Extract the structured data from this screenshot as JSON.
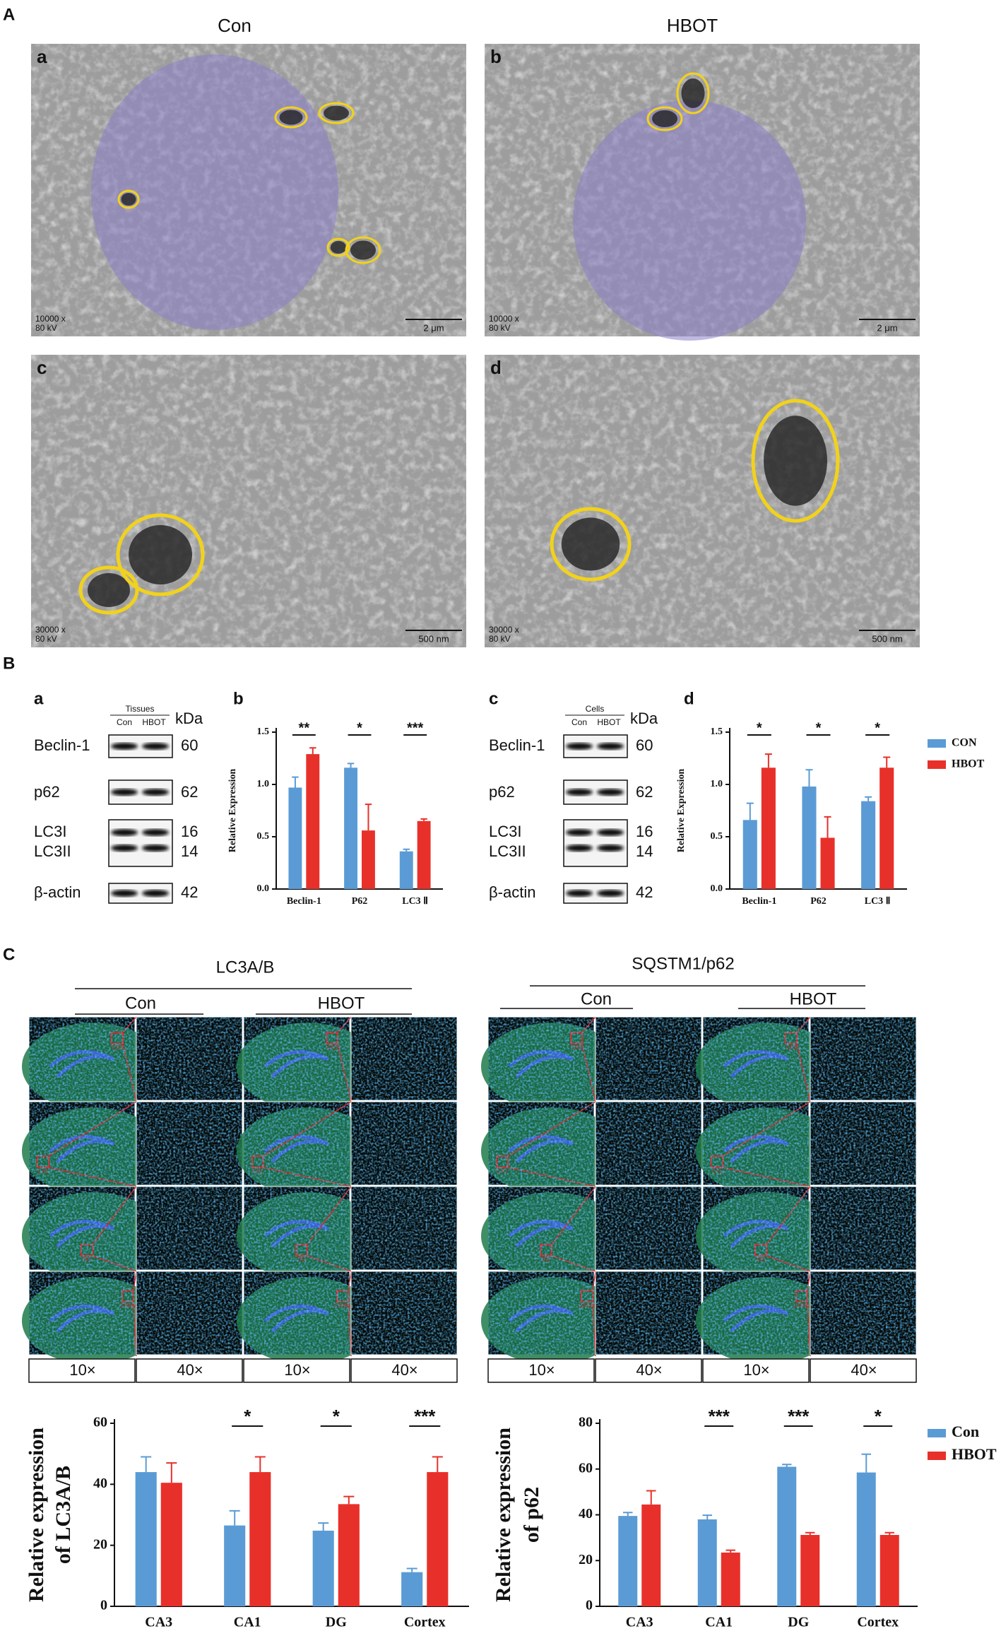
{
  "panel_A": {
    "label": "A",
    "columns": [
      "Con",
      "HBOT"
    ],
    "images": [
      {
        "letter": "a",
        "magnification": "10000 x",
        "voltage": "80 kV",
        "scale": "2 μm"
      },
      {
        "letter": "b",
        "magnification": "10000 x",
        "voltage": "80 kV",
        "scale": "2 μm"
      },
      {
        "letter": "c",
        "magnification": "30000 x",
        "voltage": "80 kV",
        "scale": "500 nm"
      },
      {
        "letter": "d",
        "magnification": "30000 x",
        "voltage": "80 kV",
        "scale": "500 nm"
      }
    ]
  },
  "panel_B": {
    "label": "B",
    "blots": [
      {
        "letter": "a",
        "group": "Tissues",
        "lanes": [
          "Con",
          "HBOT"
        ],
        "unit": "kDa",
        "bands": [
          {
            "name": "Beclin-1",
            "kda": 60
          },
          {
            "name": "p62",
            "kda": 62
          },
          {
            "name": "LC3I",
            "kda": 16
          },
          {
            "name": "LC3II",
            "kda": 14
          },
          {
            "name": "β-actin",
            "kda": 42
          }
        ]
      },
      {
        "letter": "c",
        "group": "Cells",
        "lanes": [
          "Con",
          "HBOT"
        ],
        "unit": "kDa",
        "bands": [
          {
            "name": "Beclin-1",
            "kda": 60
          },
          {
            "name": "p62",
            "kda": 62
          },
          {
            "name": "LC3I",
            "kda": 16
          },
          {
            "name": "LC3II",
            "kda": 14
          },
          {
            "name": "β-actin",
            "kda": 42
          }
        ]
      }
    ]
  },
  "panel_C": {
    "label": "C",
    "stains": [
      {
        "title": "LC3A/B",
        "groups": [
          "Con",
          "HBOT"
        ]
      },
      {
        "title": "SQSTM1/p62",
        "groups": [
          "Con",
          "HBOT"
        ]
      }
    ],
    "magnifications": [
      "10×",
      "40×"
    ],
    "regions": [
      "CA3",
      "CA1",
      "DG",
      "Cortex"
    ]
  },
  "chart_data": [
    {
      "type": "bar",
      "panel_label": "b",
      "y_label": [
        "Relative Expression"
      ],
      "categories": [
        "Beclin-1",
        "P62",
        "LC3 Ⅱ"
      ],
      "series": [
        {
          "name": "CON",
          "color": "#5b9bd5",
          "values": [
            0.97,
            1.16,
            0.36
          ],
          "errors": [
            0.1,
            0.04,
            0.02
          ]
        },
        {
          "name": "HBOT",
          "color": "#e8302a",
          "values": [
            1.29,
            0.56,
            0.65
          ],
          "errors": [
            0.06,
            0.25,
            0.02
          ]
        }
      ],
      "significance": [
        "**",
        "*",
        "***"
      ],
      "ylim": [
        0,
        1.5
      ],
      "yticks": [
        {
          "value": 0,
          "label": "0.0"
        },
        0.5,
        {
          "value": 1,
          "label": "1.0"
        },
        1.5
      ],
      "legend": false
    },
    {
      "type": "bar",
      "panel_label": "d",
      "y_label": [
        "Relative Expression"
      ],
      "categories": [
        "Beclin-1",
        "P62",
        "LC3 Ⅱ"
      ],
      "series": [
        {
          "name": "CON",
          "color": "#5b9bd5",
          "values": [
            0.66,
            0.98,
            0.84
          ],
          "errors": [
            0.16,
            0.16,
            0.04
          ]
        },
        {
          "name": "HBOT",
          "color": "#e8302a",
          "values": [
            1.16,
            0.49,
            1.16
          ],
          "errors": [
            0.13,
            0.2,
            0.1
          ]
        }
      ],
      "significance": [
        "*",
        "*",
        "*"
      ],
      "ylim": [
        0,
        1.5
      ],
      "yticks": [
        {
          "value": 0,
          "label": "0.0"
        },
        0.5,
        {
          "value": 1,
          "label": "1.0"
        },
        1.5
      ],
      "legend": true
    },
    {
      "type": "bar",
      "y_label": [
        "Relative expression",
        "of LC3A/B"
      ],
      "categories": [
        "CA3",
        "CA1",
        "DG",
        "Cortex"
      ],
      "series": [
        {
          "name": "Con",
          "color": "#5b9bd5",
          "values": [
            44,
            26.5,
            24.8,
            11.2
          ],
          "errors": [
            5,
            4.8,
            2.5,
            1.2
          ]
        },
        {
          "name": "HBOT",
          "color": "#e8302a",
          "values": [
            40.5,
            44,
            33.5,
            44
          ],
          "errors": [
            6.5,
            5,
            2.5,
            5
          ]
        }
      ],
      "significance": [
        null,
        "*",
        "*",
        "***"
      ],
      "ylim": [
        0,
        60
      ],
      "yticks": [
        0,
        20,
        40,
        60
      ],
      "legend": false
    },
    {
      "type": "bar",
      "y_label": [
        "Relative expression",
        "of p62"
      ],
      "categories": [
        "CA3",
        "CA1",
        "DG",
        "Cortex"
      ],
      "series": [
        {
          "name": "Con",
          "color": "#5b9bd5",
          "values": [
            39.5,
            38,
            61,
            58.5
          ],
          "errors": [
            1.5,
            1.8,
            1,
            8
          ]
        },
        {
          "name": "HBOT",
          "color": "#e8302a",
          "values": [
            44.5,
            23.5,
            31.2,
            31.2
          ],
          "errors": [
            6,
            1,
            1,
            1
          ]
        }
      ],
      "significance": [
        null,
        "***",
        "***",
        "*"
      ],
      "ylim": [
        0,
        80
      ],
      "yticks": [
        0,
        20,
        40,
        60,
        80
      ],
      "legend": true
    }
  ]
}
